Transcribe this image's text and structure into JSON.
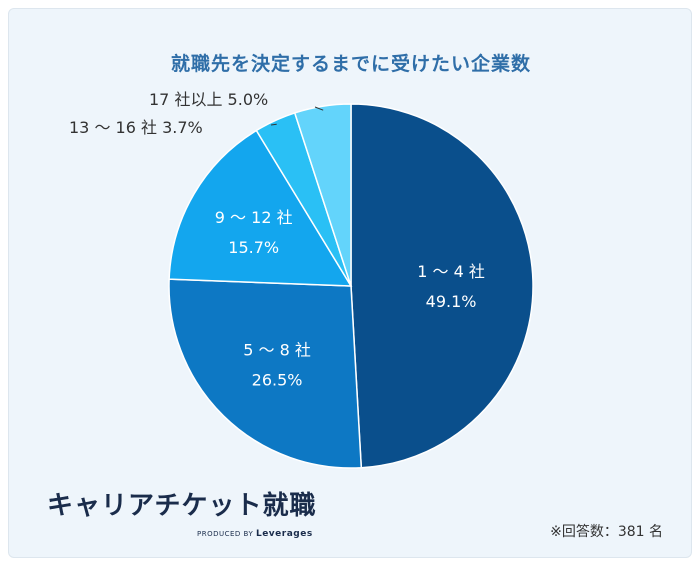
{
  "colors": {
    "title": "#2f6ea8",
    "brand": "#1a2c4b",
    "slices": [
      "#0a4f8c",
      "#0d78c4",
      "#13a6ee",
      "#2ac0f5",
      "#63d4fb"
    ],
    "label_inside": "#ffffff",
    "label_outside": "#333333",
    "slice_border": "#ffffff"
  },
  "chart_data": {
    "type": "pie",
    "title": "就職先を決定するまでに受けたい企業数",
    "start_angle_deg": 0,
    "direction": "clockwise",
    "slices": [
      {
        "label": "1 〜 4 社",
        "value": 49.1,
        "display": "49.1%"
      },
      {
        "label": "5 〜 8 社",
        "value": 26.5,
        "display": "26.5%"
      },
      {
        "label": "9 〜 12 社",
        "value": 15.7,
        "display": "15.7%"
      },
      {
        "label": "13 〜 16 社",
        "value": 3.7,
        "display": "3.7%"
      },
      {
        "label": "17 社以上",
        "value": 5.0,
        "display": "5.0%"
      }
    ],
    "inside_labels": [
      true,
      true,
      true,
      false,
      false
    ]
  },
  "brand": {
    "name": "キャリアチケット就職",
    "sub_prefix": "PRODUCED BY",
    "sub_company": "Leverages"
  },
  "note": "※回答数：381 名"
}
